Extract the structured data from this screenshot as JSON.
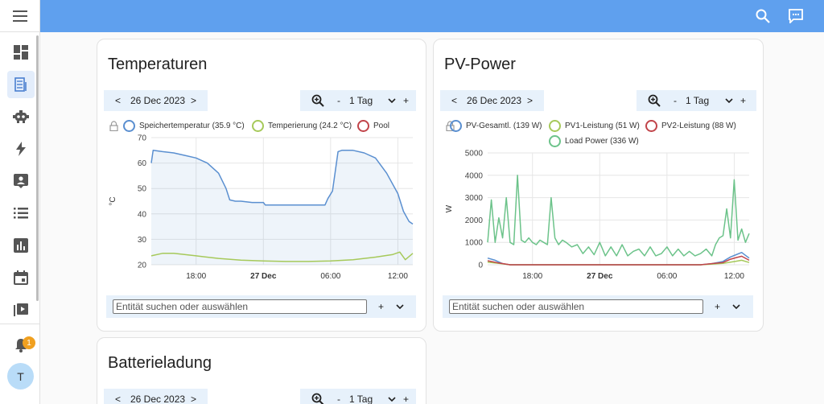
{
  "colors": {
    "accent": "#5fa0ee",
    "active_bg": "#e3edfb",
    "bar_bg": "#e7f1fb"
  },
  "sidebar": {
    "items": [
      {
        "icon": "dashboard-icon"
      },
      {
        "icon": "energy-icon"
      },
      {
        "icon": "robot-icon"
      },
      {
        "icon": "lightning-icon"
      },
      {
        "icon": "account-box-icon"
      },
      {
        "icon": "list-icon"
      },
      {
        "icon": "bar-chart-icon"
      },
      {
        "icon": "calendar-icon"
      },
      {
        "icon": "media-icon"
      }
    ],
    "notifications_count": "1",
    "avatar_letter": "T"
  },
  "cards": {
    "temperature": {
      "title": "Temperaturen",
      "date": "26 Dec 2023",
      "prev": "<",
      "next": ">",
      "period_minus": "-",
      "period": "1 Tag",
      "period_plus": "+",
      "legend": [
        {
          "name": "Speichertemperatur (35.9 °C)",
          "color": "#5a8fd0"
        },
        {
          "name": "Temperierung (24.2 °C)",
          "color": "#a6c95a"
        },
        {
          "name": "Pool",
          "color": "#c1444a"
        }
      ],
      "search_placeholder": "Entität suchen oder auswählen",
      "search_plus": "+"
    },
    "pv": {
      "title": "PV-Power",
      "date": "26 Dec 2023",
      "prev": "<",
      "next": ">",
      "period_minus": "-",
      "period": "1 Tag",
      "period_plus": "+",
      "legend": [
        {
          "name": "PV-Gesamtl. (139 W)",
          "color": "#5a8fd0"
        },
        {
          "name": "PV1-Leistung (51 W)",
          "color": "#a6c95a"
        },
        {
          "name": "PV2-Leistung (88 W)",
          "color": "#c1444a"
        },
        {
          "name": "Load Power (336 W)",
          "color": "#6cc38a"
        }
      ],
      "search_placeholder": "Entität suchen oder auswählen",
      "search_plus": "+"
    },
    "battery": {
      "title": "Batterieladung",
      "date": "26 Dec 2023",
      "prev": "<",
      "next": ">",
      "period_minus": "-",
      "period": "1 Tag",
      "period_plus": "+"
    }
  },
  "chart_data": [
    {
      "type": "line",
      "title": "Temperaturen",
      "ylabel": "°C",
      "ylim": [
        20,
        70
      ],
      "yticks": [
        20,
        30,
        40,
        50,
        60,
        70
      ],
      "xlim": [
        "26 Dec 2023 14:00",
        "27 Dec 2023 13:20"
      ],
      "xticks": [
        "18:00",
        "27 Dec",
        "06:00",
        "12:00"
      ],
      "grid": true,
      "legend": "top",
      "series": [
        {
          "name": "Speichertemperatur",
          "color": "#5a8fd0",
          "fill": true,
          "x": [
            "26 Dec 2023 14:00",
            "26 Dec 2023 14:10",
            "26 Dec 2023 15:00",
            "26 Dec 2023 16:00",
            "26 Dec 2023 17:00",
            "26 Dec 2023 18:00",
            "26 Dec 2023 19:00",
            "26 Dec 2023 20:00",
            "26 Dec 2023 20:40",
            "26 Dec 2023 21:00",
            "26 Dec 2023 21:30",
            "26 Dec 2023 22:00",
            "26 Dec 2023 23:00",
            "27 Dec 2023 00:00",
            "27 Dec 2023 00:10",
            "27 Dec 2023 02:00",
            "27 Dec 2023 04:00",
            "27 Dec 2023 05:30",
            "27 Dec 2023 05:45",
            "27 Dec 2023 06:10",
            "27 Dec 2023 06:40",
            "27 Dec 2023 07:00",
            "27 Dec 2023 08:00",
            "27 Dec 2023 09:00",
            "27 Dec 2023 10:00",
            "27 Dec 2023 11:00",
            "27 Dec 2023 12:00",
            "27 Dec 2023 12:30",
            "27 Dec 2023 13:00",
            "27 Dec 2023 13:20"
          ],
          "y": [
            60,
            65,
            64.5,
            64,
            63,
            62,
            60,
            56,
            50,
            45.5,
            45,
            45,
            44.5,
            44.5,
            43.5,
            43.5,
            43.5,
            43.5,
            46,
            49,
            64.5,
            65,
            65,
            64,
            62,
            56,
            48,
            41,
            37,
            36
          ]
        },
        {
          "name": "Temperierung",
          "color": "#a6c95a",
          "x": [
            "26 Dec 2023 14:00",
            "26 Dec 2023 15:00",
            "26 Dec 2023 16:00",
            "26 Dec 2023 18:00",
            "26 Dec 2023 20:00",
            "26 Dec 2023 22:00",
            "27 Dec 2023 00:00",
            "27 Dec 2023 02:00",
            "27 Dec 2023 04:00",
            "27 Dec 2023 06:00",
            "27 Dec 2023 08:00",
            "27 Dec 2023 10:00",
            "27 Dec 2023 11:30",
            "27 Dec 2023 12:10",
            "27 Dec 2023 12:40",
            "27 Dec 2023 13:20"
          ],
          "y": [
            23.5,
            24.5,
            24.5,
            23.5,
            22.5,
            21.8,
            21.5,
            21.3,
            21.3,
            21.5,
            22,
            23,
            24,
            25,
            22,
            24.5
          ]
        },
        {
          "name": "Pool",
          "color": "#c1444a",
          "x": [],
          "y": []
        }
      ]
    },
    {
      "type": "line",
      "title": "PV-Power",
      "ylabel": "W",
      "ylim": [
        0,
        5000
      ],
      "yticks": [
        0,
        1000,
        2000,
        3000,
        4000,
        5000
      ],
      "xlim": [
        "26 Dec 2023 14:00",
        "27 Dec 2023 13:20"
      ],
      "xticks": [
        "18:00",
        "27 Dec",
        "06:00",
        "12:00"
      ],
      "grid": true,
      "legend": "top",
      "series": [
        {
          "name": "Load Power",
          "color": "#6cc38a",
          "x": [
            "26 Dec 2023 14:00",
            "26 Dec 2023 14:20",
            "26 Dec 2023 14:40",
            "26 Dec 2023 15:00",
            "26 Dec 2023 15:20",
            "26 Dec 2023 15:40",
            "26 Dec 2023 16:00",
            "26 Dec 2023 16:20",
            "26 Dec 2023 16:40",
            "26 Dec 2023 17:00",
            "26 Dec 2023 17:20",
            "26 Dec 2023 17:40",
            "26 Dec 2023 18:00",
            "26 Dec 2023 18:20",
            "26 Dec 2023 18:40",
            "26 Dec 2023 19:00",
            "26 Dec 2023 19:20",
            "26 Dec 2023 19:40",
            "26 Dec 2023 20:00",
            "26 Dec 2023 20:20",
            "26 Dec 2023 20:40",
            "26 Dec 2023 21:00",
            "26 Dec 2023 21:30",
            "26 Dec 2023 22:00",
            "26 Dec 2023 22:30",
            "26 Dec 2023 23:00",
            "26 Dec 2023 23:30",
            "27 Dec 2023 00:00",
            "27 Dec 2023 00:30",
            "27 Dec 2023 01:00",
            "27 Dec 2023 01:30",
            "27 Dec 2023 02:00",
            "27 Dec 2023 02:30",
            "27 Dec 2023 03:00",
            "27 Dec 2023 03:30",
            "27 Dec 2023 04:00",
            "27 Dec 2023 04:30",
            "27 Dec 2023 05:00",
            "27 Dec 2023 05:30",
            "27 Dec 2023 06:00",
            "27 Dec 2023 06:30",
            "27 Dec 2023 07:00",
            "27 Dec 2023 07:30",
            "27 Dec 2023 08:00",
            "27 Dec 2023 08:30",
            "27 Dec 2023 09:00",
            "27 Dec 2023 09:30",
            "27 Dec 2023 10:00",
            "27 Dec 2023 10:20",
            "27 Dec 2023 10:40",
            "27 Dec 2023 11:00",
            "27 Dec 2023 11:20",
            "27 Dec 2023 11:40",
            "27 Dec 2023 12:00",
            "27 Dec 2023 12:20",
            "27 Dec 2023 12:40",
            "27 Dec 2023 13:00",
            "27 Dec 2023 13:20"
          ],
          "y": [
            1000,
            2900,
            1000,
            2100,
            1200,
            3000,
            1000,
            900,
            4000,
            1100,
            1000,
            1200,
            1000,
            900,
            1100,
            1000,
            900,
            3000,
            1200,
            900,
            1100,
            1000,
            800,
            900,
            500,
            800,
            450,
            1000,
            400,
            800,
            400,
            900,
            400,
            600,
            700,
            400,
            800,
            400,
            500,
            800,
            400,
            700,
            400,
            600,
            400,
            500,
            700,
            400,
            900,
            1200,
            1300,
            2500,
            1200,
            3800,
            1100,
            1600,
            1000,
            1400
          ]
        },
        {
          "name": "PV-Gesamtl.",
          "color": "#5a8fd0",
          "x": [
            "26 Dec 2023 14:00",
            "26 Dec 2023 14:40",
            "26 Dec 2023 15:20",
            "26 Dec 2023 16:00",
            "27 Dec 2023 09:00",
            "27 Dec 2023 10:00",
            "27 Dec 2023 11:00",
            "27 Dec 2023 11:40",
            "27 Dec 2023 12:10",
            "27 Dec 2023 12:40",
            "27 Dec 2023 13:00",
            "27 Dec 2023 13:20"
          ],
          "y": [
            300,
            200,
            50,
            0,
            0,
            50,
            150,
            350,
            450,
            550,
            420,
            300
          ]
        },
        {
          "name": "PV1-Leistung",
          "color": "#a6c95a",
          "x": [
            "26 Dec 2023 14:00",
            "26 Dec 2023 15:00",
            "26 Dec 2023 16:00",
            "27 Dec 2023 09:00",
            "27 Dec 2023 11:00",
            "27 Dec 2023 12:10",
            "27 Dec 2023 12:40",
            "27 Dec 2023 13:20"
          ],
          "y": [
            120,
            60,
            0,
            0,
            60,
            160,
            200,
            100
          ]
        },
        {
          "name": "PV2-Leistung",
          "color": "#c1444a",
          "x": [
            "26 Dec 2023 14:00",
            "26 Dec 2023 15:00",
            "26 Dec 2023 16:00",
            "27 Dec 2023 09:00",
            "27 Dec 2023 11:00",
            "27 Dec 2023 11:40",
            "27 Dec 2023 12:10",
            "27 Dec 2023 12:40",
            "27 Dec 2023 13:20"
          ],
          "y": [
            180,
            80,
            0,
            0,
            100,
            250,
            320,
            380,
            200
          ]
        }
      ]
    }
  ]
}
